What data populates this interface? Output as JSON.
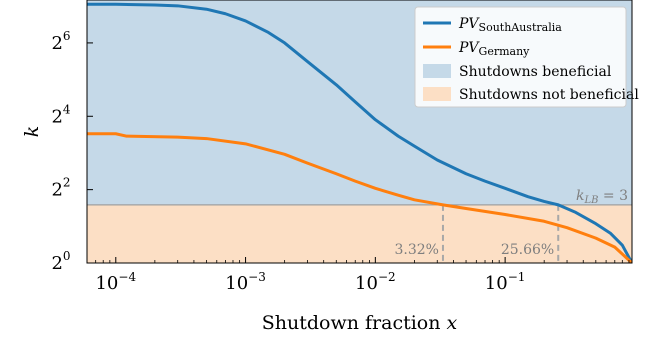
{
  "chart_data": {
    "type": "line",
    "xlabel": "Shutdown fraction x",
    "ylabel": "k",
    "x_scale": "log",
    "y_scale": "log2",
    "xlim": [
      6e-05,
      0.95
    ],
    "ylim": [
      1,
      144
    ],
    "x_ticks": [
      {
        "value": 0.0001,
        "base": "10",
        "exp": "−4"
      },
      {
        "value": 0.001,
        "base": "10",
        "exp": "−3"
      },
      {
        "value": 0.01,
        "base": "10",
        "exp": "−2"
      },
      {
        "value": 0.1,
        "base": "10",
        "exp": "−1"
      }
    ],
    "y_ticks": [
      {
        "value": 1,
        "base": "2",
        "exp": "0"
      },
      {
        "value": 4,
        "base": "2",
        "exp": "2"
      },
      {
        "value": 16,
        "base": "2",
        "exp": "4"
      },
      {
        "value": 64,
        "base": "2",
        "exp": "6"
      }
    ],
    "series": [
      {
        "name_main": "PV",
        "name_sub": "SouthAustralia",
        "color": "#1f77b4",
        "x": [
          6e-05,
          0.0001,
          0.0002,
          0.0003,
          0.0005,
          0.0007,
          0.001,
          0.0015,
          0.002,
          0.003,
          0.005,
          0.007,
          0.01,
          0.015,
          0.02,
          0.03,
          0.05,
          0.07,
          0.1,
          0.15,
          0.2,
          0.257,
          0.35,
          0.5,
          0.65,
          0.8,
          0.95
        ],
        "y": [
          133,
          133,
          131,
          129,
          121,
          111,
          97,
          78,
          64,
          45,
          29,
          21,
          15,
          11,
          9.1,
          7.0,
          5.4,
          4.7,
          4.1,
          3.5,
          3.2,
          3.0,
          2.6,
          2.1,
          1.75,
          1.4,
          1.0
        ]
      },
      {
        "name_main": "PV",
        "name_sub": "Germany",
        "color": "#ff7f0e",
        "x": [
          6e-05,
          0.0001,
          0.00012,
          0.0003,
          0.0005,
          0.001,
          0.002,
          0.003,
          0.005,
          0.007,
          0.01,
          0.015,
          0.02,
          0.0332,
          0.05,
          0.1,
          0.2,
          0.3,
          0.5,
          0.7,
          0.95
        ],
        "y": [
          11.5,
          11.5,
          11.0,
          10.8,
          10.5,
          9.5,
          7.8,
          6.6,
          5.4,
          4.7,
          4.1,
          3.6,
          3.3,
          3.0,
          2.8,
          2.5,
          2.2,
          1.95,
          1.6,
          1.35,
          1.0
        ]
      }
    ],
    "regions": [
      {
        "label": "Shutdowns beneficial",
        "color": "#c5d9e8"
      },
      {
        "label": "Shutdowns not beneficial",
        "color": "#fcdfc5"
      }
    ],
    "threshold": {
      "value": 3,
      "label_main": "k",
      "label_sub": "LB",
      "label_rest": " = 3"
    },
    "annotations": [
      {
        "x": 0.0332,
        "label": "3.32%"
      },
      {
        "x": 0.2566,
        "label": "25.66%"
      }
    ],
    "legend_position": "top-right",
    "grid": false
  }
}
